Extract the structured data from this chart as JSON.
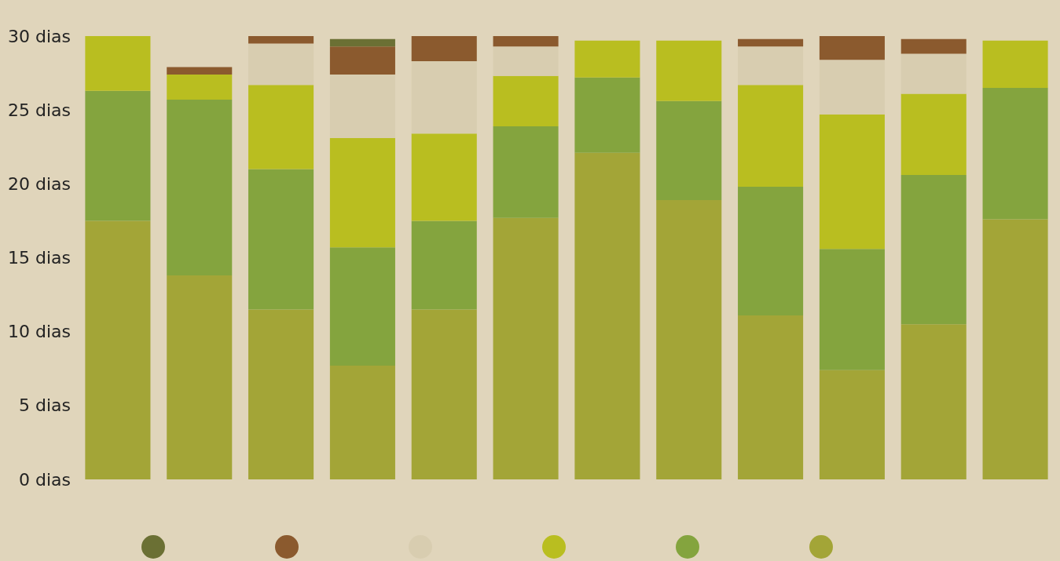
{
  "chart_data": {
    "type": "bar",
    "stacked": true,
    "categories": [
      null,
      null,
      null,
      null,
      null,
      null,
      null,
      null,
      null,
      null,
      null,
      null
    ],
    "series": [
      {
        "color": "#a3a537",
        "values": [
          17.5,
          13.8,
          11.5,
          7.7,
          11.5,
          17.7,
          22.1,
          18.9,
          11.1,
          7.4,
          10.5,
          17.6
        ]
      },
      {
        "color": "#84a43e",
        "values": [
          8.8,
          11.9,
          9.5,
          8.0,
          6.0,
          6.2,
          5.1,
          6.7,
          8.7,
          8.2,
          10.1,
          8.9
        ]
      },
      {
        "color": "#b9be20",
        "values": [
          3.7,
          1.7,
          5.7,
          7.4,
          5.9,
          3.4,
          2.5,
          4.1,
          6.9,
          9.1,
          5.5,
          3.2
        ]
      },
      {
        "color": "#d8cdb0",
        "values": [
          null,
          null,
          2.8,
          4.3,
          4.9,
          2.0,
          null,
          null,
          2.6,
          3.7,
          2.7,
          null
        ]
      },
      {
        "color": "#8b5a2e",
        "values": [
          null,
          0.5,
          0.5,
          1.9,
          1.7,
          0.7,
          null,
          null,
          0.5,
          1.6,
          1.0,
          null
        ]
      },
      {
        "color": "#6b7034",
        "values": [
          null,
          null,
          null,
          0.5,
          null,
          null,
          null,
          null,
          null,
          null,
          null,
          null
        ]
      }
    ],
    "ylim": [
      0,
      30
    ],
    "yticks": [
      {
        "value": 0,
        "label": "0 dias"
      },
      {
        "value": 5,
        "label": "5 dias"
      },
      {
        "value": 10,
        "label": "10 dias"
      },
      {
        "value": 15,
        "label": "15 dias"
      },
      {
        "value": 20,
        "label": "20 dias"
      },
      {
        "value": 25,
        "label": "25 dias"
      },
      {
        "value": 30,
        "label": "30 dias"
      }
    ],
    "grid": false
  }
}
